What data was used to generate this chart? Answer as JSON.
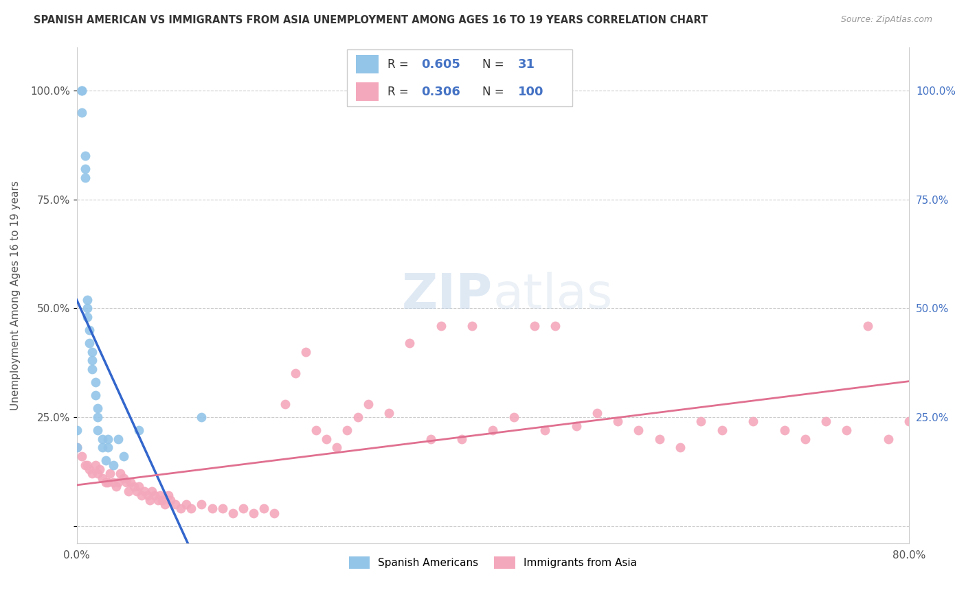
{
  "title": "SPANISH AMERICAN VS IMMIGRANTS FROM ASIA UNEMPLOYMENT AMONG AGES 16 TO 19 YEARS CORRELATION CHART",
  "source": "Source: ZipAtlas.com",
  "ylabel": "Unemployment Among Ages 16 to 19 years",
  "xlim": [
    0.0,
    0.8
  ],
  "ylim": [
    -0.04,
    1.1
  ],
  "xticks": [
    0.0,
    0.1,
    0.2,
    0.3,
    0.4,
    0.5,
    0.6,
    0.7,
    0.8
  ],
  "xticklabels": [
    "0.0%",
    "",
    "",
    "",
    "",
    "",
    "",
    "",
    "80.0%"
  ],
  "yticks": [
    0.0,
    0.25,
    0.5,
    0.75,
    1.0
  ],
  "yticklabels_left": [
    "",
    "25.0%",
    "50.0%",
    "75.0%",
    "100.0%"
  ],
  "yticklabels_right": [
    "",
    "25.0%",
    "50.0%",
    "75.0%",
    "100.0%"
  ],
  "blue_color": "#93c5e8",
  "pink_color": "#f4a8bc",
  "blue_line_color": "#3366cc",
  "pink_line_color": "#e07090",
  "legend_label_blue": "Spanish Americans",
  "legend_label_pink": "Immigrants from Asia",
  "blue_scatter_x": [
    0.0,
    0.0,
    0.005,
    0.005,
    0.005,
    0.008,
    0.008,
    0.008,
    0.01,
    0.01,
    0.01,
    0.012,
    0.012,
    0.015,
    0.015,
    0.015,
    0.018,
    0.018,
    0.02,
    0.02,
    0.02,
    0.025,
    0.025,
    0.028,
    0.03,
    0.03,
    0.035,
    0.04,
    0.045,
    0.06,
    0.12
  ],
  "blue_scatter_y": [
    0.18,
    0.22,
    0.95,
    1.0,
    1.0,
    0.8,
    0.82,
    0.85,
    0.48,
    0.5,
    0.52,
    0.42,
    0.45,
    0.36,
    0.38,
    0.4,
    0.3,
    0.33,
    0.22,
    0.25,
    0.27,
    0.18,
    0.2,
    0.15,
    0.18,
    0.2,
    0.14,
    0.2,
    0.16,
    0.22,
    0.25
  ],
  "pink_scatter_x": [
    0.0,
    0.005,
    0.008,
    0.01,
    0.012,
    0.015,
    0.018,
    0.02,
    0.022,
    0.025,
    0.028,
    0.03,
    0.032,
    0.035,
    0.038,
    0.04,
    0.042,
    0.045,
    0.048,
    0.05,
    0.052,
    0.055,
    0.058,
    0.06,
    0.062,
    0.065,
    0.068,
    0.07,
    0.072,
    0.075,
    0.078,
    0.08,
    0.082,
    0.085,
    0.088,
    0.09,
    0.095,
    0.1,
    0.105,
    0.11,
    0.12,
    0.13,
    0.14,
    0.15,
    0.16,
    0.17,
    0.18,
    0.19,
    0.2,
    0.21,
    0.22,
    0.23,
    0.24,
    0.25,
    0.26,
    0.27,
    0.28,
    0.3,
    0.32,
    0.34,
    0.35,
    0.37,
    0.38,
    0.4,
    0.42,
    0.44,
    0.45,
    0.46,
    0.48,
    0.5,
    0.52,
    0.54,
    0.56,
    0.58,
    0.6,
    0.62,
    0.65,
    0.68,
    0.7,
    0.72,
    0.74,
    0.76,
    0.78,
    0.8
  ],
  "pink_scatter_y": [
    0.18,
    0.16,
    0.14,
    0.14,
    0.13,
    0.12,
    0.14,
    0.12,
    0.13,
    0.11,
    0.1,
    0.1,
    0.12,
    0.1,
    0.09,
    0.1,
    0.12,
    0.11,
    0.1,
    0.08,
    0.1,
    0.09,
    0.08,
    0.09,
    0.07,
    0.08,
    0.07,
    0.06,
    0.08,
    0.07,
    0.06,
    0.07,
    0.06,
    0.05,
    0.07,
    0.06,
    0.05,
    0.04,
    0.05,
    0.04,
    0.05,
    0.04,
    0.04,
    0.03,
    0.04,
    0.03,
    0.04,
    0.03,
    0.28,
    0.35,
    0.4,
    0.22,
    0.2,
    0.18,
    0.22,
    0.25,
    0.28,
    0.26,
    0.42,
    0.2,
    0.46,
    0.2,
    0.46,
    0.22,
    0.25,
    0.46,
    0.22,
    0.46,
    0.23,
    0.26,
    0.24,
    0.22,
    0.2,
    0.18,
    0.24,
    0.22,
    0.24,
    0.22,
    0.2,
    0.24,
    0.22,
    0.46,
    0.2,
    0.24
  ]
}
